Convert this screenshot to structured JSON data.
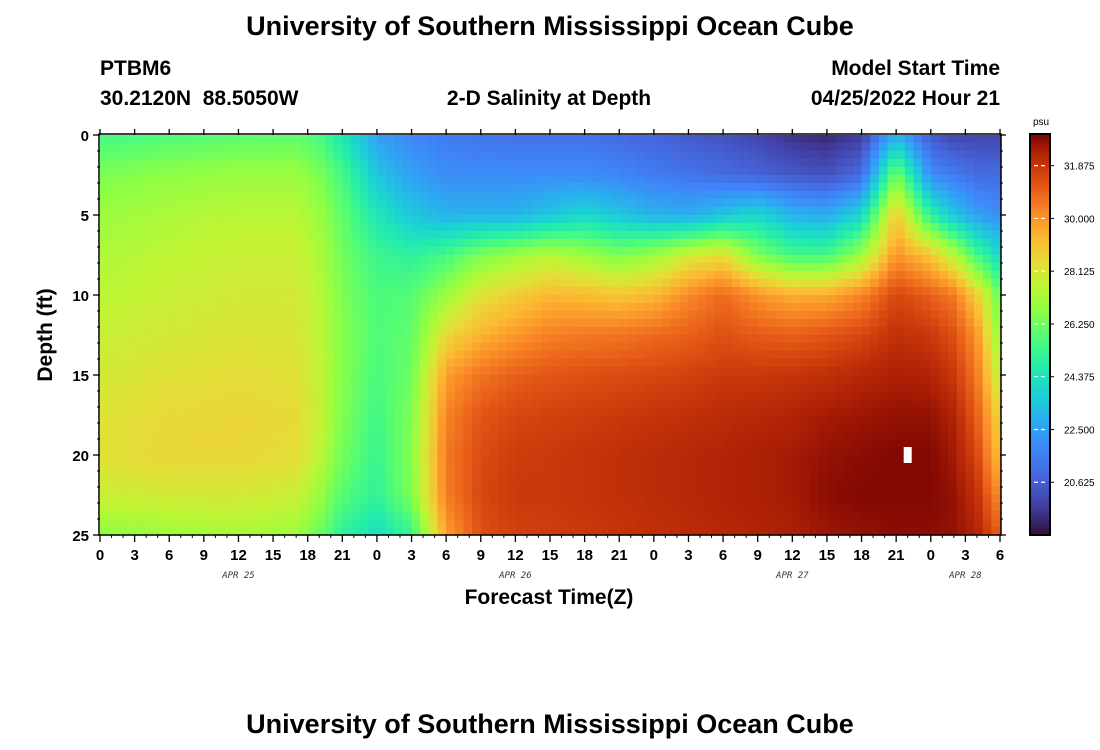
{
  "page": {
    "title": "University of Southern Mississippi Ocean Cube",
    "footer_title": "University of Southern Mississippi Ocean Cube"
  },
  "header": {
    "station_id": "PTBM6",
    "station_coords": "30.2120N  88.5050W",
    "plot_title": "2-D Salinity at Depth",
    "model_start_label": "Model Start Time",
    "model_start_value": "04/25/2022 Hour 21"
  },
  "chart_data": {
    "type": "heatmap",
    "title": "2-D Salinity at Depth",
    "xlabel": "Forecast Time(Z)",
    "ylabel": "Depth (ft)",
    "x_unit": "hours from 04/25/2022 00Z",
    "xlim": [
      0,
      78
    ],
    "ylim": [
      0,
      25
    ],
    "y_inverted": true,
    "x_ticks": [
      0,
      3,
      6,
      9,
      12,
      15,
      18,
      21,
      24,
      27,
      30,
      33,
      36,
      39,
      42,
      45,
      48,
      51,
      54,
      57,
      60,
      63,
      66,
      69,
      72,
      75,
      78
    ],
    "x_tick_labels": [
      "0",
      "3",
      "6",
      "9",
      "12",
      "15",
      "18",
      "21",
      "0",
      "3",
      "6",
      "9",
      "12",
      "15",
      "18",
      "21",
      "0",
      "3",
      "6",
      "9",
      "12",
      "15",
      "18",
      "21",
      "0",
      "3",
      "6"
    ],
    "date_labels": [
      {
        "label": "APR 25",
        "hour": 12
      },
      {
        "label": "APR 26",
        "hour": 36
      },
      {
        "label": "APR 27",
        "hour": 60
      },
      {
        "label": "APR 28",
        "hour": 75
      }
    ],
    "y_ticks": [
      0,
      5,
      10,
      15,
      20,
      25
    ],
    "y_tick_labels": [
      "0",
      "5",
      "10",
      "15",
      "20",
      "25"
    ],
    "colorbar": {
      "unit_label": "psu",
      "range": [
        18.75,
        33.0
      ],
      "ticks": [
        31.875,
        30.0,
        28.125,
        26.25,
        24.375,
        22.5,
        20.625
      ],
      "tick_labels": [
        "31.875",
        "30.000",
        "28.125",
        "26.250",
        "24.375",
        "22.500",
        "20.625"
      ],
      "colormap": "turbo"
    },
    "grid": false,
    "marker": {
      "hour": 70,
      "depth_ft": 20
    },
    "profiles": {
      "x_hours": [
        0,
        6,
        12,
        17,
        19,
        21,
        24,
        27,
        30,
        33,
        36,
        39,
        42,
        45,
        48,
        51,
        54,
        57,
        60,
        63,
        66,
        69,
        72,
        74,
        76,
        78
      ],
      "depth_ft": [
        0,
        2.5,
        5,
        7.5,
        10,
        12.5,
        15,
        17.5,
        20,
        22.5,
        25
      ],
      "salinity_psu_by_depth": [
        [
          25.5,
          25.7,
          25.9,
          26.0,
          25.6,
          24.5,
          22.5,
          21.8,
          21.5,
          21.3,
          21.2,
          21.2,
          21.2,
          21.0,
          20.8,
          20.5,
          20.3,
          20.0,
          19.5,
          19.3,
          19.8,
          23.0,
          20.5,
          20.0,
          20.0,
          20.0
        ],
        [
          26.5,
          26.8,
          27.0,
          27.0,
          26.5,
          25.5,
          23.5,
          22.5,
          22.0,
          22.0,
          22.0,
          22.0,
          22.0,
          21.8,
          21.5,
          21.3,
          21.0,
          20.8,
          20.5,
          20.3,
          21.0,
          26.5,
          22.0,
          21.5,
          21.0,
          21.0
        ],
        [
          27.0,
          27.3,
          27.5,
          27.5,
          27.0,
          26.0,
          24.5,
          23.5,
          23.0,
          23.0,
          23.0,
          23.5,
          24.0,
          23.5,
          23.0,
          22.8,
          23.5,
          24.0,
          23.0,
          22.8,
          24.0,
          29.0,
          25.0,
          23.5,
          22.5,
          22.0
        ],
        [
          27.3,
          27.6,
          27.8,
          27.8,
          27.3,
          26.3,
          25.3,
          25.0,
          25.5,
          26.5,
          27.0,
          27.5,
          27.0,
          26.5,
          27.0,
          28.0,
          28.5,
          26.5,
          25.5,
          25.5,
          27.0,
          30.0,
          29.0,
          27.5,
          25.5,
          24.0
        ],
        [
          27.5,
          27.8,
          28.0,
          28.0,
          27.5,
          26.5,
          25.6,
          25.8,
          27.0,
          28.3,
          28.8,
          29.3,
          29.2,
          29.0,
          29.3,
          30.2,
          30.8,
          30.0,
          29.5,
          29.6,
          30.3,
          31.5,
          31.0,
          30.5,
          28.8,
          26.0
        ],
        [
          27.8,
          28.0,
          28.2,
          28.1,
          27.6,
          26.6,
          25.7,
          26.0,
          28.5,
          29.4,
          29.9,
          30.4,
          30.5,
          30.6,
          30.8,
          31.0,
          31.3,
          31.1,
          31.0,
          31.2,
          31.5,
          32.0,
          31.8,
          31.3,
          30.0,
          26.7
        ],
        [
          28.0,
          28.3,
          28.4,
          28.3,
          27.7,
          26.6,
          25.6,
          26.2,
          29.8,
          30.6,
          31.0,
          31.2,
          31.3,
          31.4,
          31.5,
          31.6,
          31.8,
          31.8,
          31.9,
          32.0,
          32.2,
          32.4,
          32.3,
          31.8,
          30.5,
          27.5
        ],
        [
          28.2,
          28.5,
          28.6,
          28.5,
          27.8,
          26.5,
          25.4,
          26.5,
          30.3,
          31.2,
          31.5,
          31.6,
          31.7,
          31.8,
          31.9,
          32.0,
          32.1,
          32.2,
          32.3,
          32.5,
          32.6,
          32.7,
          32.7,
          32.3,
          31.0,
          28.5
        ],
        [
          28.3,
          28.6,
          28.6,
          28.4,
          27.6,
          26.3,
          25.2,
          26.6,
          30.5,
          31.4,
          31.7,
          31.8,
          31.9,
          32.0,
          32.1,
          32.2,
          32.3,
          32.4,
          32.5,
          32.7,
          32.8,
          32.9,
          32.9,
          32.5,
          31.5,
          29.0
        ],
        [
          27.8,
          28.0,
          28.0,
          27.8,
          27.0,
          25.8,
          25.0,
          26.5,
          30.4,
          31.5,
          31.8,
          31.8,
          31.9,
          32.0,
          32.1,
          32.2,
          32.3,
          32.4,
          32.5,
          32.8,
          32.9,
          32.9,
          32.9,
          32.7,
          32.0,
          30.0
        ],
        [
          26.8,
          27.0,
          27.2,
          27.0,
          26.2,
          25.0,
          24.2,
          25.2,
          29.8,
          31.3,
          31.6,
          31.7,
          31.8,
          31.9,
          32.0,
          32.1,
          32.2,
          32.3,
          32.4,
          32.6,
          32.7,
          32.8,
          32.8,
          32.7,
          32.3,
          31.0
        ]
      ]
    }
  }
}
